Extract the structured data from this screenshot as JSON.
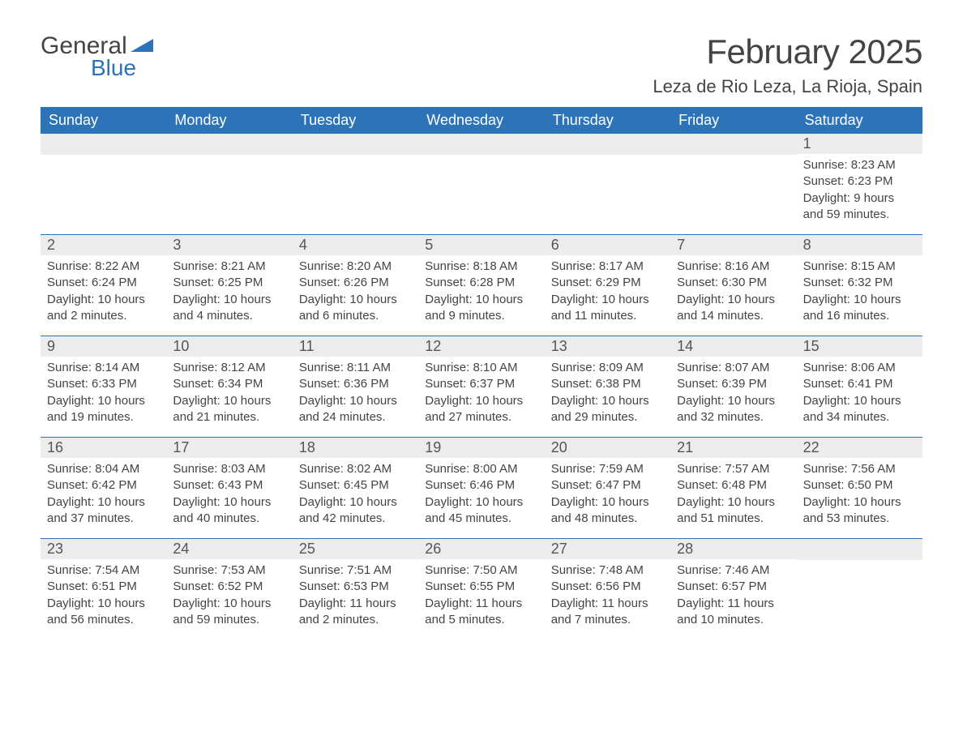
{
  "brand": {
    "text1": "General",
    "text2": "Blue",
    "color_general": "#444444",
    "color_blue": "#2d73b8"
  },
  "title": "February 2025",
  "location": "Leza de Rio Leza, La Rioja, Spain",
  "colors": {
    "header_bg": "#2d73b8",
    "header_text": "#ffffff",
    "daynum_bg": "#ececec",
    "daynum_text": "#555555",
    "body_text": "#444444",
    "row_border": "#2d73b8",
    "page_bg": "#ffffff"
  },
  "weekdays": [
    "Sunday",
    "Monday",
    "Tuesday",
    "Wednesday",
    "Thursday",
    "Friday",
    "Saturday"
  ],
  "weeks": [
    [
      null,
      null,
      null,
      null,
      null,
      null,
      {
        "d": "1",
        "sunrise": "8:23 AM",
        "sunset": "6:23 PM",
        "daylight": "9 hours and 59 minutes."
      }
    ],
    [
      {
        "d": "2",
        "sunrise": "8:22 AM",
        "sunset": "6:24 PM",
        "daylight": "10 hours and 2 minutes."
      },
      {
        "d": "3",
        "sunrise": "8:21 AM",
        "sunset": "6:25 PM",
        "daylight": "10 hours and 4 minutes."
      },
      {
        "d": "4",
        "sunrise": "8:20 AM",
        "sunset": "6:26 PM",
        "daylight": "10 hours and 6 minutes."
      },
      {
        "d": "5",
        "sunrise": "8:18 AM",
        "sunset": "6:28 PM",
        "daylight": "10 hours and 9 minutes."
      },
      {
        "d": "6",
        "sunrise": "8:17 AM",
        "sunset": "6:29 PM",
        "daylight": "10 hours and 11 minutes."
      },
      {
        "d": "7",
        "sunrise": "8:16 AM",
        "sunset": "6:30 PM",
        "daylight": "10 hours and 14 minutes."
      },
      {
        "d": "8",
        "sunrise": "8:15 AM",
        "sunset": "6:32 PM",
        "daylight": "10 hours and 16 minutes."
      }
    ],
    [
      {
        "d": "9",
        "sunrise": "8:14 AM",
        "sunset": "6:33 PM",
        "daylight": "10 hours and 19 minutes."
      },
      {
        "d": "10",
        "sunrise": "8:12 AM",
        "sunset": "6:34 PM",
        "daylight": "10 hours and 21 minutes."
      },
      {
        "d": "11",
        "sunrise": "8:11 AM",
        "sunset": "6:36 PM",
        "daylight": "10 hours and 24 minutes."
      },
      {
        "d": "12",
        "sunrise": "8:10 AM",
        "sunset": "6:37 PM",
        "daylight": "10 hours and 27 minutes."
      },
      {
        "d": "13",
        "sunrise": "8:09 AM",
        "sunset": "6:38 PM",
        "daylight": "10 hours and 29 minutes."
      },
      {
        "d": "14",
        "sunrise": "8:07 AM",
        "sunset": "6:39 PM",
        "daylight": "10 hours and 32 minutes."
      },
      {
        "d": "15",
        "sunrise": "8:06 AM",
        "sunset": "6:41 PM",
        "daylight": "10 hours and 34 minutes."
      }
    ],
    [
      {
        "d": "16",
        "sunrise": "8:04 AM",
        "sunset": "6:42 PM",
        "daylight": "10 hours and 37 minutes."
      },
      {
        "d": "17",
        "sunrise": "8:03 AM",
        "sunset": "6:43 PM",
        "daylight": "10 hours and 40 minutes."
      },
      {
        "d": "18",
        "sunrise": "8:02 AM",
        "sunset": "6:45 PM",
        "daylight": "10 hours and 42 minutes."
      },
      {
        "d": "19",
        "sunrise": "8:00 AM",
        "sunset": "6:46 PM",
        "daylight": "10 hours and 45 minutes."
      },
      {
        "d": "20",
        "sunrise": "7:59 AM",
        "sunset": "6:47 PM",
        "daylight": "10 hours and 48 minutes."
      },
      {
        "d": "21",
        "sunrise": "7:57 AM",
        "sunset": "6:48 PM",
        "daylight": "10 hours and 51 minutes."
      },
      {
        "d": "22",
        "sunrise": "7:56 AM",
        "sunset": "6:50 PM",
        "daylight": "10 hours and 53 minutes."
      }
    ],
    [
      {
        "d": "23",
        "sunrise": "7:54 AM",
        "sunset": "6:51 PM",
        "daylight": "10 hours and 56 minutes."
      },
      {
        "d": "24",
        "sunrise": "7:53 AM",
        "sunset": "6:52 PM",
        "daylight": "10 hours and 59 minutes."
      },
      {
        "d": "25",
        "sunrise": "7:51 AM",
        "sunset": "6:53 PM",
        "daylight": "11 hours and 2 minutes."
      },
      {
        "d": "26",
        "sunrise": "7:50 AM",
        "sunset": "6:55 PM",
        "daylight": "11 hours and 5 minutes."
      },
      {
        "d": "27",
        "sunrise": "7:48 AM",
        "sunset": "6:56 PM",
        "daylight": "11 hours and 7 minutes."
      },
      {
        "d": "28",
        "sunrise": "7:46 AM",
        "sunset": "6:57 PM",
        "daylight": "11 hours and 10 minutes."
      },
      null
    ]
  ],
  "labels": {
    "sunrise": "Sunrise:",
    "sunset": "Sunset:",
    "daylight": "Daylight:"
  }
}
